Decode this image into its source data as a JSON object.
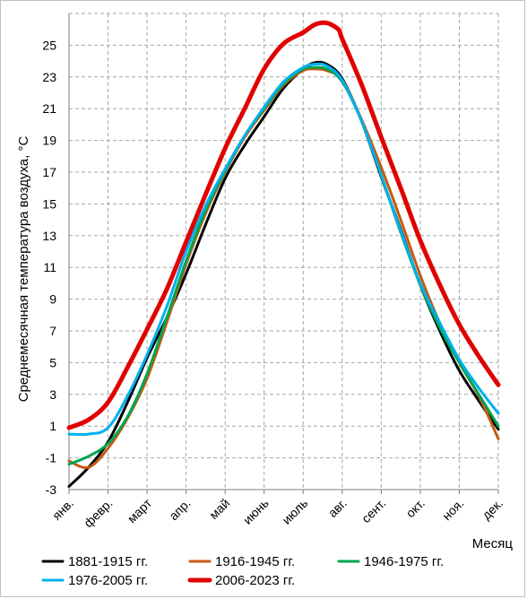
{
  "chart_data": {
    "type": "line",
    "ylabel": "Среднемесячная температура воздуха, °С",
    "xlabel": "Месяц",
    "categories": [
      "янв.",
      "февр.",
      "март",
      "апр.",
      "май",
      "июнь",
      "июль",
      "авг.",
      "сент.",
      "окт.",
      "ноя.",
      "дек."
    ],
    "ylim": [
      -3,
      27
    ],
    "yticks": [
      -3,
      -1,
      1,
      3,
      5,
      7,
      9,
      11,
      13,
      15,
      17,
      19,
      21,
      23,
      25
    ],
    "grid": "dashed",
    "legend_position": "bottom",
    "series": [
      {
        "name": "1881-1915 гг.",
        "color": "#000000",
        "width": 3,
        "x": [
          0,
          0.5,
          1,
          1.5,
          2,
          2.5,
          3,
          3.5,
          4,
          4.5,
          5,
          5.5,
          6,
          6.3,
          6.6,
          7,
          7.5,
          8,
          8.5,
          9,
          9.5,
          10,
          10.5,
          11
        ],
        "values": [
          -2.8,
          -1.6,
          0.0,
          2.5,
          5.3,
          7.8,
          10.6,
          13.7,
          16.6,
          18.7,
          20.5,
          22.3,
          23.5,
          23.9,
          23.8,
          22.9,
          20.2,
          16.7,
          13.4,
          9.9,
          7.0,
          4.5,
          2.6,
          0.8
        ]
      },
      {
        "name": "1916-1945 гг.",
        "color": "#c55a11",
        "width": 3,
        "x": [
          0,
          0.5,
          1,
          1.5,
          2,
          2.5,
          3,
          3.5,
          4,
          4.5,
          5,
          5.5,
          6,
          6.3,
          6.6,
          7,
          7.5,
          8,
          8.5,
          9,
          9.5,
          10,
          10.5,
          11
        ],
        "values": [
          -1.2,
          -1.6,
          -0.4,
          1.5,
          4.0,
          7.5,
          11.2,
          14.4,
          17.0,
          19.2,
          20.9,
          22.5,
          23.4,
          23.5,
          23.4,
          22.8,
          20.3,
          17.3,
          14.0,
          10.5,
          7.5,
          5.0,
          2.9,
          0.2
        ]
      },
      {
        "name": "1946-1975 гг.",
        "color": "#00a550",
        "width": 3,
        "x": [
          0,
          0.5,
          1,
          1.5,
          2,
          2.5,
          3,
          3.5,
          4,
          4.5,
          5,
          5.5,
          6,
          6.3,
          6.6,
          7,
          7.5,
          8,
          8.5,
          9,
          9.5,
          10,
          10.5,
          11
        ],
        "values": [
          -1.4,
          -0.9,
          -0.1,
          1.6,
          4.3,
          7.8,
          11.4,
          14.6,
          17.1,
          19.3,
          21.0,
          22.6,
          23.5,
          23.6,
          23.5,
          22.7,
          20.2,
          16.8,
          13.2,
          9.9,
          7.2,
          5.0,
          3.0,
          1.0
        ]
      },
      {
        "name": "1976-2005 гг.",
        "color": "#00b0f0",
        "width": 3,
        "x": [
          0,
          0.5,
          1,
          1.5,
          2,
          2.5,
          3,
          3.5,
          4,
          4.5,
          5,
          5.5,
          6,
          6.3,
          6.6,
          7,
          7.5,
          8,
          8.5,
          9,
          9.5,
          10,
          10.5,
          11
        ],
        "values": [
          0.5,
          0.5,
          0.9,
          2.9,
          5.5,
          8.5,
          12.0,
          14.9,
          17.2,
          19.3,
          21.1,
          22.7,
          23.6,
          23.8,
          23.7,
          22.8,
          20.2,
          16.8,
          13.3,
          10.0,
          7.5,
          5.2,
          3.4,
          1.8
        ]
      },
      {
        "name": "2006-2023 гг.",
        "color": "#e00000",
        "width": 5,
        "x": [
          0,
          0.5,
          1,
          1.5,
          2,
          2.5,
          3,
          3.5,
          4,
          4.5,
          5,
          5.5,
          6,
          6.3,
          6.6,
          6.9,
          7,
          7.5,
          8,
          8.5,
          9,
          9.5,
          10,
          10.5,
          11
        ],
        "values": [
          0.9,
          1.4,
          2.5,
          4.7,
          7.1,
          9.6,
          12.6,
          15.6,
          18.5,
          21.0,
          23.5,
          25.1,
          25.8,
          26.3,
          26.4,
          26.0,
          25.4,
          22.5,
          19.2,
          16.0,
          12.7,
          9.9,
          7.4,
          5.4,
          3.6
        ]
      }
    ]
  }
}
